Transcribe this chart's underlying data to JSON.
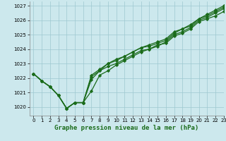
{
  "title": "Graphe pression niveau de la mer (hPa)",
  "background_color": "#cce8ed",
  "grid_color": "#9ec8d0",
  "line_color": "#1a6b1a",
  "xlim": [
    -0.5,
    23
  ],
  "ylim": [
    1019.4,
    1027.3
  ],
  "yticks": [
    1020,
    1021,
    1022,
    1023,
    1024,
    1025,
    1026,
    1027
  ],
  "xticks": [
    0,
    1,
    2,
    3,
    4,
    5,
    6,
    7,
    8,
    9,
    10,
    11,
    12,
    13,
    14,
    15,
    16,
    17,
    18,
    19,
    20,
    21,
    22,
    23
  ],
  "series": [
    [
      1022.3,
      1021.8,
      1021.4,
      1020.8,
      1019.9,
      1020.3,
      1020.3,
      1021.9,
      1022.5,
      1022.8,
      1023.0,
      1023.3,
      1023.6,
      1023.9,
      1024.0,
      1024.2,
      1024.5,
      1025.0,
      1025.2,
      1025.5,
      1026.0,
      1026.2,
      1026.5,
      1026.8
    ],
    [
      1022.3,
      1021.8,
      1021.4,
      1020.8,
      1019.9,
      1020.3,
      1020.3,
      1022.1,
      1022.5,
      1023.0,
      1023.2,
      1023.5,
      1023.8,
      1024.1,
      1024.2,
      1024.4,
      1024.6,
      1025.1,
      1025.4,
      1025.6,
      1026.1,
      1026.3,
      1026.6,
      1026.9
    ],
    [
      1022.3,
      1021.8,
      1021.4,
      1020.8,
      1019.9,
      1020.3,
      1020.3,
      1021.1,
      1022.2,
      1022.5,
      1022.9,
      1023.2,
      1023.5,
      1023.8,
      1024.0,
      1024.3,
      1024.4,
      1024.9,
      1025.1,
      1025.4,
      1025.9,
      1026.1,
      1026.3,
      1026.6
    ],
    [
      1022.3,
      1021.8,
      1021.4,
      1020.8,
      1019.9,
      1020.3,
      1020.3,
      1022.2,
      1022.6,
      1023.0,
      1023.3,
      1023.5,
      1023.8,
      1024.1,
      1024.3,
      1024.5,
      1024.7,
      1025.2,
      1025.4,
      1025.7,
      1026.1,
      1026.4,
      1026.7,
      1027.0
    ]
  ],
  "marker": "D",
  "markersize": 2.2,
  "linewidth": 0.9,
  "title_fontsize": 6.5,
  "tick_fontsize": 5.0
}
